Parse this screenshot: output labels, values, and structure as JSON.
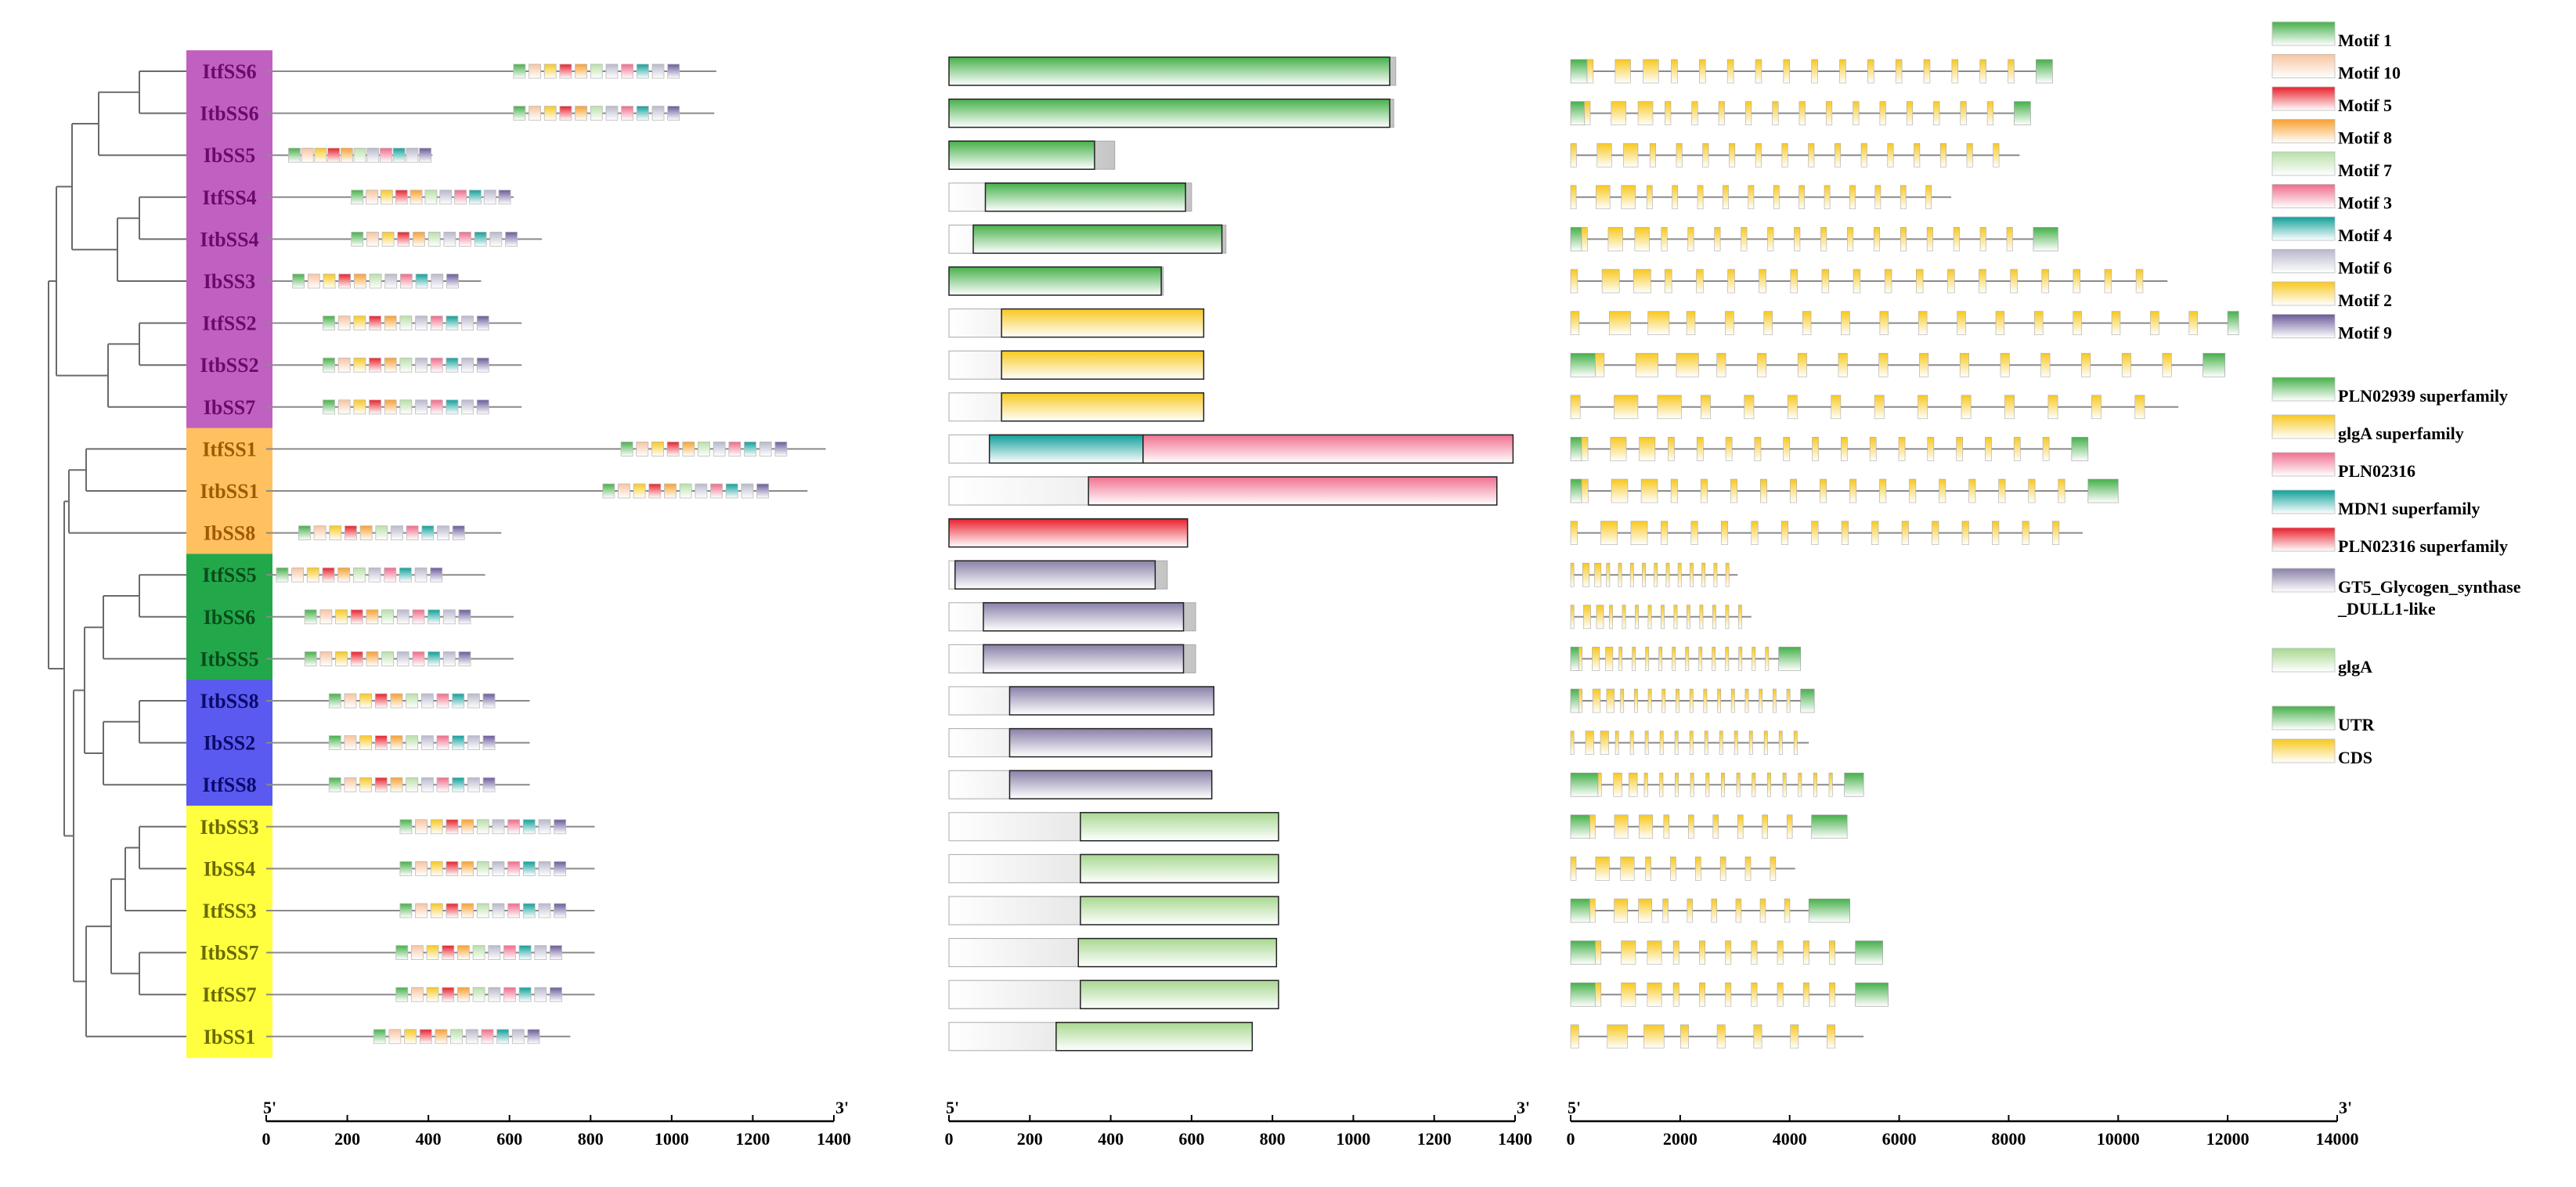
{
  "genes": [
    {
      "name": "ItfSS6",
      "group_color": "#c060c0",
      "label_color": "#6a0a6a"
    },
    {
      "name": "ItbSS6",
      "group_color": "#c060c0",
      "label_color": "#6a0a6a"
    },
    {
      "name": "IbSS5",
      "group_color": "#c060c0",
      "label_color": "#6a0a6a"
    },
    {
      "name": "ItfSS4",
      "group_color": "#c060c0",
      "label_color": "#6a0a6a"
    },
    {
      "name": "ItbSS4",
      "group_color": "#c060c0",
      "label_color": "#6a0a6a"
    },
    {
      "name": "IbSS3",
      "group_color": "#c060c0",
      "label_color": "#6a0a6a"
    },
    {
      "name": "ItfSS2",
      "group_color": "#c060c0",
      "label_color": "#6a0a6a"
    },
    {
      "name": "ItbSS2",
      "group_color": "#c060c0",
      "label_color": "#6a0a6a"
    },
    {
      "name": "IbSS7",
      "group_color": "#c060c0",
      "label_color": "#6a0a6a"
    },
    {
      "name": "ItfSS1",
      "group_color": "#ffc060",
      "label_color": "#a05a00"
    },
    {
      "name": "ItbSS1",
      "group_color": "#ffc060",
      "label_color": "#a05a00"
    },
    {
      "name": "IbSS8",
      "group_color": "#ffc060",
      "label_color": "#a05a00"
    },
    {
      "name": "ItfSS5",
      "group_color": "#22a84a",
      "label_color": "#0a4a1a"
    },
    {
      "name": "IbSS6",
      "group_color": "#22a84a",
      "label_color": "#0a4a1a"
    },
    {
      "name": "ItbSS5",
      "group_color": "#22a84a",
      "label_color": "#0a4a1a"
    },
    {
      "name": "ItbSS8",
      "group_color": "#5a5af0",
      "label_color": "#0a0a6a"
    },
    {
      "name": "IbSS2",
      "group_color": "#5a5af0",
      "label_color": "#0a0a6a"
    },
    {
      "name": "ItfSS8",
      "group_color": "#5a5af0",
      "label_color": "#0a0a6a"
    },
    {
      "name": "ItbSS3",
      "group_color": "#ffff40",
      "label_color": "#6a6a00"
    },
    {
      "name": "IbSS4",
      "group_color": "#ffff40",
      "label_color": "#6a6a00"
    },
    {
      "name": "ItfSS3",
      "group_color": "#ffff40",
      "label_color": "#6a6a00"
    },
    {
      "name": "ItbSS7",
      "group_color": "#ffff40",
      "label_color": "#6a6a00"
    },
    {
      "name": "ItfSS7",
      "group_color": "#ffff40",
      "label_color": "#6a6a00"
    },
    {
      "name": "IbSS1",
      "group_color": "#ffff40",
      "label_color": "#6a6a00"
    }
  ],
  "panels": {
    "motifs": {
      "axis_max": 1400,
      "tick_step": 200,
      "ticks": [
        "0",
        "200",
        "400",
        "600",
        "800",
        "1000",
        "1200",
        "1400"
      ],
      "end5": "5'",
      "end3": "3'",
      "lengths": [
        1110,
        1105,
        410,
        610,
        680,
        530,
        630,
        630,
        630,
        1380,
        1335,
        580,
        540,
        610,
        610,
        650,
        650,
        650,
        810,
        810,
        810,
        810,
        810,
        750
      ],
      "starts": [
        610,
        610,
        55,
        210,
        210,
        65,
        140,
        140,
        140,
        875,
        830,
        80,
        25,
        95,
        95,
        155,
        155,
        155,
        330,
        330,
        330,
        320,
        320,
        265
      ]
    },
    "domains": {
      "axis_max": 1400,
      "tick_step": 200,
      "ticks": [
        "0",
        "200",
        "400",
        "600",
        "800",
        "1000",
        "1200",
        "1400"
      ],
      "end5": "5'",
      "end3": "3'",
      "rows": [
        {
          "len": 1105,
          "domains": [
            {
              "type": "PLN02939 superfamily",
              "s": 0,
              "e": 1090
            }
          ]
        },
        {
          "len": 1100,
          "domains": [
            {
              "type": "PLN02939 superfamily",
              "s": 0,
              "e": 1090
            }
          ]
        },
        {
          "len": 410,
          "domains": [
            {
              "type": "PLN02939 superfamily",
              "s": 0,
              "e": 360
            }
          ]
        },
        {
          "len": 600,
          "domains": [
            {
              "type": "PLN02939 superfamily",
              "s": 90,
              "e": 585
            }
          ]
        },
        {
          "len": 685,
          "domains": [
            {
              "type": "PLN02939 superfamily",
              "s": 60,
              "e": 675
            }
          ]
        },
        {
          "len": 530,
          "domains": [
            {
              "type": "PLN02939 superfamily",
              "s": 0,
              "e": 525
            }
          ]
        },
        {
          "len": 630,
          "domains": [
            {
              "type": "glgA superfamily",
              "s": 130,
              "e": 630
            }
          ]
        },
        {
          "len": 630,
          "domains": [
            {
              "type": "glgA superfamily",
              "s": 130,
              "e": 630
            }
          ]
        },
        {
          "len": 630,
          "domains": [
            {
              "type": "glgA superfamily",
              "s": 130,
              "e": 630
            }
          ]
        },
        {
          "len": 1395,
          "domains": [
            {
              "type": "MDN1 superfamily",
              "s": 100,
              "e": 480
            },
            {
              "type": "PLN02316",
              "s": 480,
              "e": 1395
            }
          ]
        },
        {
          "len": 1355,
          "domains": [
            {
              "type": "PLN02316",
              "s": 345,
              "e": 1355
            }
          ]
        },
        {
          "len": 590,
          "domains": [
            {
              "type": "PLN02316 superfamily",
              "s": 0,
              "e": 590
            }
          ]
        },
        {
          "len": 540,
          "domains": [
            {
              "type": "GT5_Glycogen_synthase_DULL1-like",
              "s": 15,
              "e": 510
            }
          ]
        },
        {
          "len": 610,
          "domains": [
            {
              "type": "GT5_Glycogen_synthase_DULL1-like",
              "s": 85,
              "e": 580
            }
          ]
        },
        {
          "len": 610,
          "domains": [
            {
              "type": "GT5_Glycogen_synthase_DULL1-like",
              "s": 85,
              "e": 580
            }
          ]
        },
        {
          "len": 655,
          "domains": [
            {
              "type": "GT5_Glycogen_synthase_DULL1-like",
              "s": 150,
              "e": 655
            }
          ]
        },
        {
          "len": 650,
          "domains": [
            {
              "type": "GT5_Glycogen_synthase_DULL1-like",
              "s": 150,
              "e": 650
            }
          ]
        },
        {
          "len": 650,
          "domains": [
            {
              "type": "GT5_Glycogen_synthase_DULL1-like",
              "s": 150,
              "e": 650
            }
          ]
        },
        {
          "len": 815,
          "domains": [
            {
              "type": "glgA",
              "s": 325,
              "e": 815
            }
          ]
        },
        {
          "len": 815,
          "domains": [
            {
              "type": "glgA",
              "s": 325,
              "e": 815
            }
          ]
        },
        {
          "len": 815,
          "domains": [
            {
              "type": "glgA",
              "s": 325,
              "e": 815
            }
          ]
        },
        {
          "len": 810,
          "domains": [
            {
              "type": "glgA",
              "s": 320,
              "e": 810
            }
          ]
        },
        {
          "len": 815,
          "domains": [
            {
              "type": "glgA",
              "s": 325,
              "e": 815
            }
          ]
        },
        {
          "len": 750,
          "domains": [
            {
              "type": "glgA",
              "s": 265,
              "e": 750
            }
          ]
        }
      ]
    },
    "genes_struct": {
      "axis_max": 14000,
      "tick_step": 2000,
      "ticks": [
        "0",
        "2000",
        "4000",
        "6000",
        "8000",
        "10000",
        "12000",
        "14000"
      ],
      "end5": "5'",
      "end3": "3'",
      "rows": [
        {
          "len": 8800,
          "utr5": 300,
          "utr3": 300,
          "exons": 16
        },
        {
          "len": 8400,
          "utr5": 250,
          "utr3": 300,
          "exons": 16
        },
        {
          "len": 8200,
          "utr5": 0,
          "utr3": 0,
          "exons": 17
        },
        {
          "len": 6950,
          "utr5": 0,
          "utr3": 0,
          "exons": 15
        },
        {
          "len": 8900,
          "utr5": 200,
          "utr3": 450,
          "exons": 17
        },
        {
          "len": 10900,
          "utr5": 0,
          "utr3": 0,
          "exons": 19
        },
        {
          "len": 12200,
          "utr5": 0,
          "utr3": 200,
          "exons": 17
        },
        {
          "len": 11950,
          "utr5": 450,
          "utr3": 400,
          "exons": 15
        },
        {
          "len": 11100,
          "utr5": 0,
          "utr3": 0,
          "exons": 14
        },
        {
          "len": 9450,
          "utr5": 200,
          "utr3": 300,
          "exons": 17
        },
        {
          "len": 10000,
          "utr5": 200,
          "utr3": 550,
          "exons": 17
        },
        {
          "len": 9350,
          "utr5": 0,
          "utr3": 0,
          "exons": 17
        },
        {
          "len": 3050,
          "utr5": 0,
          "utr3": 0,
          "exons": 14
        },
        {
          "len": 3300,
          "utr5": 0,
          "utr3": 0,
          "exons": 14
        },
        {
          "len": 4200,
          "utr5": 150,
          "utr3": 400,
          "exons": 15
        },
        {
          "len": 4450,
          "utr5": 150,
          "utr3": 250,
          "exons": 16
        },
        {
          "len": 4350,
          "utr5": 0,
          "utr3": 0,
          "exons": 16
        },
        {
          "len": 5350,
          "utr5": 500,
          "utr3": 350,
          "exons": 16
        },
        {
          "len": 5050,
          "utr5": 350,
          "utr3": 650,
          "exons": 9
        },
        {
          "len": 4100,
          "utr5": 0,
          "utr3": 0,
          "exons": 9
        },
        {
          "len": 5100,
          "utr5": 350,
          "utr3": 750,
          "exons": 9
        },
        {
          "len": 5700,
          "utr5": 450,
          "utr3": 500,
          "exons": 10
        },
        {
          "len": 5800,
          "utr5": 450,
          "utr3": 600,
          "exons": 10
        },
        {
          "len": 5350,
          "utr5": 0,
          "utr3": 0,
          "exons": 8
        }
      ]
    }
  },
  "legend_motifs": [
    {
      "label": "Motif 1",
      "color": "#46b04a"
    },
    {
      "label": "Motif 10",
      "color": "#f8c4a0"
    },
    {
      "label": "Motif 5",
      "color": "#e8202c"
    },
    {
      "label": "Motif 8",
      "color": "#f8a030"
    },
    {
      "label": "Motif 7",
      "color": "#b8e0a8"
    },
    {
      "label": "Motif 3",
      "color": "#f06a8a"
    },
    {
      "label": "Motif 4",
      "color": "#10a09a"
    },
    {
      "label": "Motif 6",
      "color": "#b8b8cc"
    },
    {
      "label": "Motif 2",
      "color": "#f8c820"
    },
    {
      "label": "Motif 9",
      "color": "#6a5a9a"
    }
  ],
  "legend_domains": [
    {
      "label": "PLN02939 superfamily",
      "color": "#46b04a"
    },
    {
      "label": "glgA superfamily",
      "color": "#f8c820"
    },
    {
      "label": "PLN02316",
      "color": "#f07090"
    },
    {
      "label": "MDN1 superfamily",
      "color": "#10a09a"
    },
    {
      "label": "PLN02316 superfamily",
      "color": "#e8202c"
    },
    {
      "label": "GT5_Glycogen_synthase",
      "label2": "_DULL1-like",
      "color": "#8a80a8"
    },
    {
      "label": "glgA",
      "color": "#a8d890"
    }
  ],
  "legend_structure": [
    {
      "label": "UTR",
      "color": "#46b04a"
    },
    {
      "label": "CDS",
      "color": "#f8c820"
    }
  ]
}
